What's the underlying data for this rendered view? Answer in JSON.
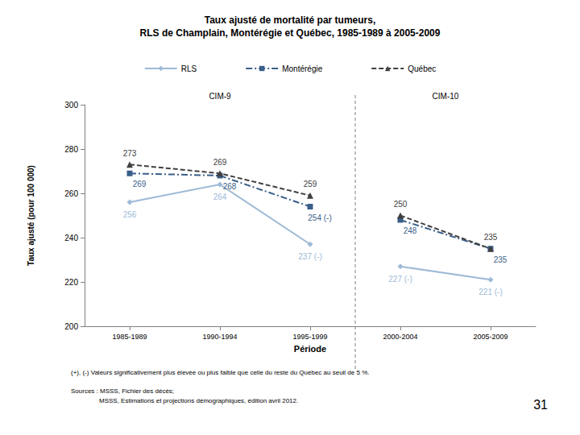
{
  "chart_data": {
    "type": "line",
    "title": "Taux ajusté de mortalité par tumeurs,\nRLS de Champlain, Montérégie et Québec, 1985-1989 à 2005-2009",
    "x_label": "Période",
    "y_label": "Taux ajusté (pour 100 000)",
    "categories": [
      "1985-1989",
      "1990-1994",
      "1995-1999",
      "2000-2004",
      "2005-2009"
    ],
    "periods": [
      {
        "label": "CIM-9",
        "categories": [
          "1985-1989",
          "1990-1994",
          "1995-1999"
        ]
      },
      {
        "label": "CIM-10",
        "categories": [
          "2000-2004",
          "2005-2009"
        ]
      }
    ],
    "series": [
      {
        "name": "RLS",
        "color": "#9dbad6",
        "marker": "diamond",
        "line_style": "solid",
        "values": [
          256,
          264,
          237,
          227,
          221
        ],
        "value_labels": [
          "256",
          "264",
          "237 (-)",
          "227 (-)",
          "221 (-)"
        ]
      },
      {
        "name": "Montérégie",
        "color": "#3a5f8a",
        "marker": "square",
        "line_style": "dashdot",
        "values": [
          269,
          268,
          254,
          248,
          235
        ],
        "value_labels": [
          "269",
          "268",
          "254 (-)",
          "248",
          "235"
        ]
      },
      {
        "name": "Québec",
        "color": "#404040",
        "marker": "triangle",
        "line_style": "dashed",
        "values": [
          273,
          269,
          259,
          250,
          235
        ],
        "value_labels": [
          "273",
          "269",
          "259",
          "250",
          "235"
        ]
      }
    ],
    "ylim": [
      200,
      300
    ],
    "yticks": [
      200,
      220,
      240,
      260,
      280,
      300
    ],
    "grid": false,
    "legend": "top",
    "data_labels": true,
    "footnote": "(+), (-) Valeurs significativement plus élevée ou plus faible que celle du reste du Québec au seuil de 5 %.",
    "sources": [
      "Sources : MSSS, Fichier des décès;",
      "MSSS, Estimations et projections démographiques, édition avril 2012."
    ],
    "page_number": "31"
  }
}
